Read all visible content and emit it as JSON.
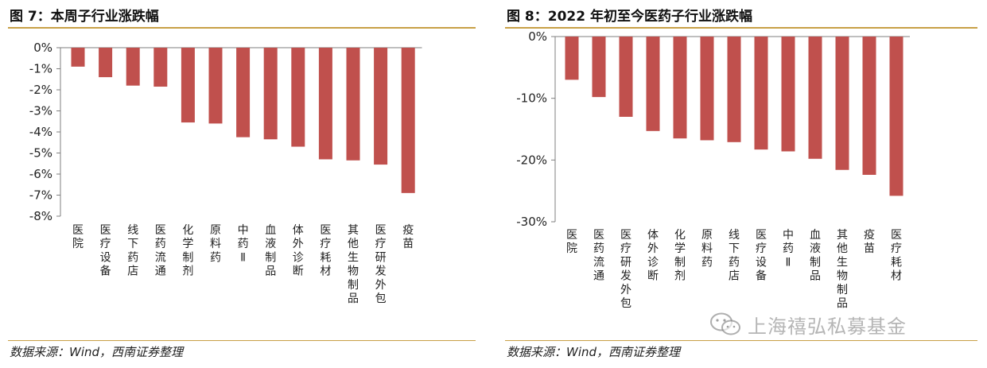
{
  "panels": [
    {
      "title": "图 7：本周子行业涨跌幅",
      "source": "数据来源：Wind，西南证券整理"
    },
    {
      "title": "图 8：2022 年初至今医药子行业涨跌幅",
      "source": "数据来源：Wind，西南证券整理"
    }
  ],
  "watermark": {
    "text": "上海禧弘私募基金",
    "icon": "wechat-icon"
  },
  "colors": {
    "bar": "#c0504d",
    "rule": "#c8a046",
    "axis": "#7f7f7f"
  },
  "chart_data": [
    {
      "type": "bar",
      "title": "图 7：本周子行业涨跌幅",
      "categories": [
        "医院",
        "医疗设备",
        "线下药店",
        "医药流通",
        "化学制剂",
        "原料药",
        "中药Ⅱ",
        "血液制品",
        "体外诊断",
        "医疗耗材",
        "其他生物制品",
        "医疗研发外包",
        "疫苗"
      ],
      "values": [
        -0.9,
        -1.4,
        -1.8,
        -1.85,
        -3.55,
        -3.6,
        -4.25,
        -4.35,
        -4.7,
        -5.3,
        -5.35,
        -5.55,
        -6.9
      ],
      "ylim": [
        -8,
        0
      ],
      "yticks": [
        0,
        -1,
        -2,
        -3,
        -4,
        -5,
        -6,
        -7,
        -8
      ],
      "ytick_labels": [
        "0%",
        "-1%",
        "-2%",
        "-3%",
        "-4%",
        "-5%",
        "-6%",
        "-7%",
        "-8%"
      ],
      "xlabel": "",
      "ylabel": "",
      "grid": false,
      "legend": "none"
    },
    {
      "type": "bar",
      "title": "图 8：2022 年初至今医药子行业涨跌幅",
      "categories": [
        "医院",
        "医药流通",
        "医疗研发外包",
        "体外诊断",
        "化学制剂",
        "原料药",
        "线下药店",
        "医疗设备",
        "中药Ⅱ",
        "血液制品",
        "其他生物制品",
        "疫苗",
        "医疗耗材"
      ],
      "values": [
        -7.0,
        -9.8,
        -13.0,
        -15.3,
        -16.5,
        -16.8,
        -17.1,
        -18.3,
        -18.6,
        -19.8,
        -21.6,
        -22.4,
        -25.8
      ],
      "ylim": [
        -30,
        0
      ],
      "yticks": [
        0,
        -10,
        -20,
        -30
      ],
      "ytick_labels": [
        "0%",
        "-10%",
        "-20%",
        "-30%"
      ],
      "xlabel": "",
      "ylabel": "",
      "grid": false,
      "legend": "none"
    }
  ]
}
